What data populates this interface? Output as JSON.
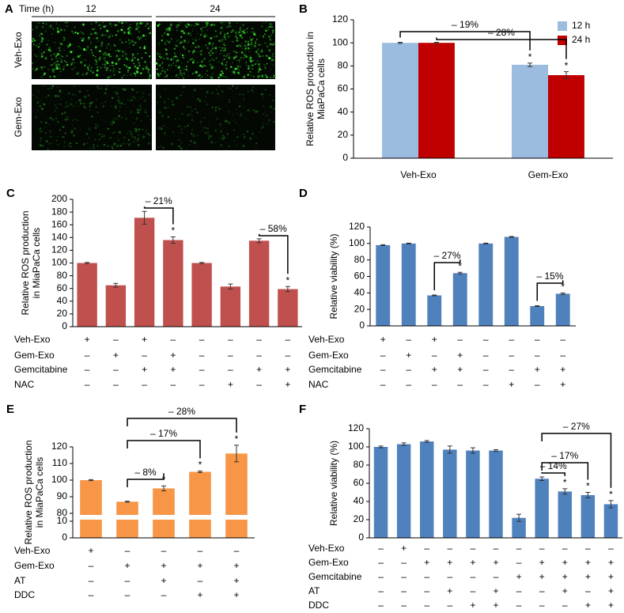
{
  "image_panel": {
    "panel_label": "A",
    "time_label": "Time (h)",
    "columns": [
      "12",
      "24"
    ],
    "rows": [
      "Veh-Exo",
      "Gem-Exo"
    ]
  },
  "chart_data": [
    {
      "type": "bar",
      "panel_label": "B",
      "y_label": [
        "Relative ROS production in",
        "MiaPaCa cells"
      ],
      "categories": [
        "Veh-Exo",
        "Gem-Exo"
      ],
      "series": [
        {
          "name": "12 h",
          "color": "#9bbbdf",
          "values": [
            100,
            81
          ],
          "errors": [
            0.5,
            1.5
          ],
          "significant": [
            false,
            true
          ]
        },
        {
          "name": "24 h",
          "color": "#c00000",
          "values": [
            100,
            72
          ],
          "errors": [
            0.5,
            3
          ],
          "significant": [
            false,
            true
          ]
        }
      ],
      "ylim": [
        0,
        120
      ],
      "yticks": [
        0,
        20,
        40,
        60,
        80,
        100,
        120
      ],
      "legend": "upper-right",
      "annotations": [
        "– 19%",
        "– 28%"
      ],
      "significance_mark": "*"
    },
    {
      "type": "bar",
      "panel_label": "C",
      "y_label": [
        "Relative ROS production",
        "in MiaPaCa cells"
      ],
      "color": "#c0504d",
      "values": [
        100,
        65,
        171,
        136,
        100,
        63,
        135,
        59
      ],
      "errors": [
        1,
        3,
        10,
        5,
        1,
        4,
        3,
        4
      ],
      "significant": [
        false,
        false,
        false,
        true,
        false,
        false,
        false,
        true
      ],
      "ylim": [
        0,
        200
      ],
      "yticks": [
        0,
        20,
        40,
        60,
        80,
        100,
        120,
        140,
        160,
        180,
        200
      ],
      "treatments": [
        {
          "name": "Veh-Exo",
          "marks": [
            "+",
            "–",
            "+",
            "–",
            "–",
            "–",
            "–",
            "–"
          ]
        },
        {
          "name": "Gem-Exo",
          "marks": [
            "–",
            "+",
            "–",
            "+",
            "–",
            "–",
            "–",
            "–"
          ]
        },
        {
          "name": "Gemcitabine",
          "marks": [
            "–",
            "–",
            "+",
            "+",
            "–",
            "–",
            "+",
            "+"
          ]
        },
        {
          "name": "NAC",
          "marks": [
            "–",
            "–",
            "–",
            "–",
            "–",
            "+",
            "–",
            "+"
          ]
        }
      ],
      "annotations": [
        "– 21%",
        "– 58%"
      ],
      "significance_mark": "*"
    },
    {
      "type": "bar",
      "panel_label": "D",
      "y_label": [
        "Relative viability (%)"
      ],
      "color": "#4f81bd",
      "values": [
        98,
        100,
        37,
        64,
        100,
        108,
        24,
        39
      ],
      "errors": [
        0.5,
        0.5,
        0.5,
        1,
        0.5,
        0.5,
        0.5,
        1
      ],
      "significant": [
        false,
        false,
        false,
        true,
        false,
        false,
        false,
        true
      ],
      "ylim": [
        0,
        120
      ],
      "yticks": [
        0,
        20,
        40,
        60,
        80,
        100,
        120
      ],
      "treatments": [
        {
          "name": "Veh-Exo",
          "marks": [
            "+",
            "–",
            "+",
            "–",
            "–",
            "–",
            "–",
            "–"
          ]
        },
        {
          "name": "Gem-Exo",
          "marks": [
            "–",
            "+",
            "–",
            "+",
            "–",
            "–",
            "–",
            "–"
          ]
        },
        {
          "name": "Gemcitabine",
          "marks": [
            "–",
            "–",
            "+",
            "+",
            "–",
            "–",
            "+",
            "+"
          ]
        },
        {
          "name": "NAC",
          "marks": [
            "–",
            "–",
            "–",
            "–",
            "–",
            "+",
            "–",
            "+"
          ]
        }
      ],
      "annotations": [
        "– 27%",
        "– 15%"
      ],
      "significance_mark": "*"
    },
    {
      "type": "bar",
      "panel_label": "E",
      "y_label": [
        "Relative ROS production",
        "in MiaPaCa cells"
      ],
      "color": "#f79646",
      "values": [
        100,
        87,
        95,
        105,
        116
      ],
      "errors": [
        0.3,
        0.3,
        1.5,
        0.5,
        5
      ],
      "significant": [
        false,
        false,
        true,
        true,
        true
      ],
      "ylim": [
        0,
        120
      ],
      "y_break": [
        10,
        80
      ],
      "yticks": [
        0,
        10,
        80,
        90,
        100,
        110,
        120
      ],
      "treatments": [
        {
          "name": "Veh-Exo",
          "marks": [
            "+",
            "–",
            "–",
            "–",
            "–"
          ]
        },
        {
          "name": "Gem-Exo",
          "marks": [
            "–",
            "+",
            "+",
            "+",
            "+"
          ]
        },
        {
          "name": "AT",
          "marks": [
            "–",
            "–",
            "+",
            "–",
            "+"
          ]
        },
        {
          "name": "DDC",
          "marks": [
            "–",
            "–",
            "–",
            "+",
            "+"
          ]
        }
      ],
      "annotations": [
        "– 8%",
        "– 17%",
        "– 28%"
      ],
      "significance_mark": "*"
    },
    {
      "type": "bar",
      "panel_label": "F",
      "y_label": [
        "Relative viability (%)"
      ],
      "color": "#4f81bd",
      "values": [
        100,
        103,
        106,
        97,
        96,
        96,
        22,
        65,
        51,
        47,
        37
      ],
      "errors": [
        1,
        1.5,
        1,
        4,
        3,
        1,
        4,
        2,
        3,
        3,
        4
      ],
      "significant": [
        false,
        false,
        false,
        false,
        false,
        false,
        false,
        false,
        true,
        true,
        true
      ],
      "ylim": [
        0,
        120
      ],
      "yticks": [
        0,
        20,
        40,
        60,
        80,
        100,
        120
      ],
      "treatments": [
        {
          "name": "Veh-Exo",
          "marks": [
            "–",
            "+",
            "–",
            "–",
            "–",
            "–",
            "–",
            "–",
            "–",
            "–",
            "–"
          ]
        },
        {
          "name": "Gem-Exo",
          "marks": [
            "–",
            "–",
            "+",
            "+",
            "+",
            "+",
            "–",
            "+",
            "+",
            "+",
            "+"
          ]
        },
        {
          "name": "Gemcitabine",
          "marks": [
            "–",
            "–",
            "–",
            "–",
            "–",
            "–",
            "+",
            "+",
            "+",
            "+",
            "+"
          ]
        },
        {
          "name": "AT",
          "marks": [
            "–",
            "–",
            "–",
            "+",
            "–",
            "+",
            "–",
            "–",
            "+",
            "–",
            "+"
          ]
        },
        {
          "name": "DDC",
          "marks": [
            "–",
            "–",
            "–",
            "–",
            "+",
            "+",
            "–",
            "–",
            "–",
            "+",
            "+"
          ]
        }
      ],
      "annotations": [
        "– 27%",
        "– 17%",
        "– 14%"
      ],
      "significance_mark": "*"
    }
  ]
}
